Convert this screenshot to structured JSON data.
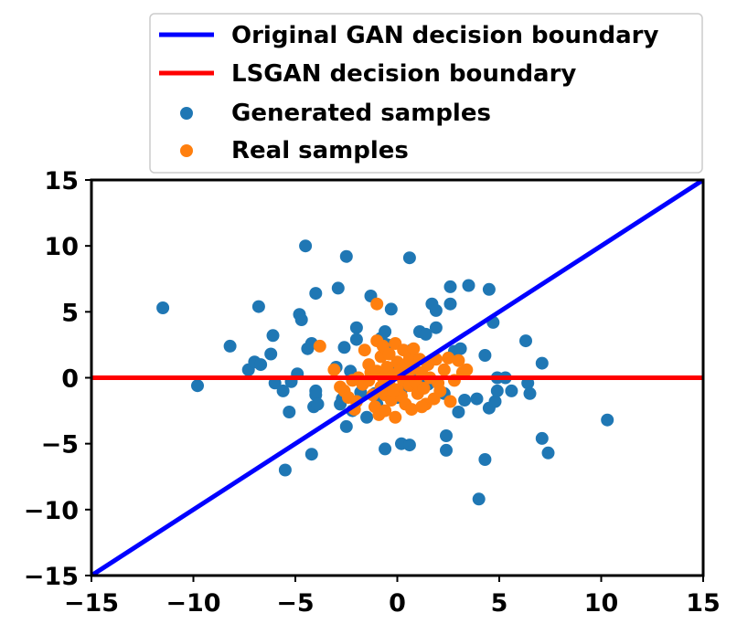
{
  "chart_data": {
    "type": "scatter",
    "title": "",
    "xlabel": "",
    "ylabel": "",
    "xlim": [
      -15,
      15
    ],
    "ylim": [
      -15,
      15
    ],
    "xticks": [
      -15,
      -10,
      -5,
      0,
      5,
      10,
      15
    ],
    "yticks": [
      -15,
      -10,
      -5,
      0,
      5,
      10,
      15
    ],
    "xtick_labels": [
      "−15",
      "−10",
      "−5",
      "0",
      "5",
      "10",
      "15"
    ],
    "ytick_labels": [
      "−15",
      "−10",
      "−5",
      "0",
      "5",
      "10",
      "15"
    ],
    "grid": false,
    "legend_position": "top-right, above plot",
    "lines": [
      {
        "name": "Original GAN decision boundary",
        "color": "#0000ff",
        "x": [
          -15,
          15
        ],
        "y": [
          -15,
          15
        ]
      },
      {
        "name": "LSGAN decision boundary",
        "color": "#ff0000",
        "x": [
          -15,
          15
        ],
        "y": [
          0,
          0
        ]
      }
    ],
    "series": [
      {
        "name": "Generated samples",
        "color": "#1f77b4",
        "points": [
          [
            -11.5,
            5.3
          ],
          [
            -9.8,
            -0.6
          ],
          [
            -8.2,
            2.4
          ],
          [
            -7.3,
            0.6
          ],
          [
            -7.0,
            1.2
          ],
          [
            -6.8,
            5.4
          ],
          [
            -6.7,
            1.0
          ],
          [
            -6.2,
            1.8
          ],
          [
            -6.1,
            3.2
          ],
          [
            -6.0,
            -0.4
          ],
          [
            -5.6,
            -1.0
          ],
          [
            -5.5,
            -7.0
          ],
          [
            -5.3,
            -2.6
          ],
          [
            -5.2,
            -0.3
          ],
          [
            -4.9,
            0.3
          ],
          [
            -4.8,
            4.8
          ],
          [
            -4.7,
            4.4
          ],
          [
            -4.5,
            10.0
          ],
          [
            -4.4,
            2.2
          ],
          [
            -4.2,
            2.6
          ],
          [
            -4.2,
            -5.8
          ],
          [
            -4.1,
            -2.2
          ],
          [
            -4.0,
            -1.0
          ],
          [
            -4.0,
            6.4
          ],
          [
            -4.0,
            -1.3
          ],
          [
            -3.9,
            -2.0
          ],
          [
            -3.0,
            0.8
          ],
          [
            -2.9,
            6.8
          ],
          [
            -2.8,
            -2.0
          ],
          [
            -2.7,
            -1.6
          ],
          [
            -2.6,
            2.3
          ],
          [
            -2.5,
            9.2
          ],
          [
            -2.5,
            -3.7
          ],
          [
            -2.3,
            0.5
          ],
          [
            -2.2,
            -2.5
          ],
          [
            -2.0,
            3.8
          ],
          [
            -2.0,
            2.9
          ],
          [
            -1.8,
            -1.1
          ],
          [
            -1.5,
            -3.0
          ],
          [
            -1.3,
            6.2
          ],
          [
            -1.1,
            -1.2
          ],
          [
            -1.0,
            -2.0
          ],
          [
            -0.8,
            3.0
          ],
          [
            -0.6,
            -5.4
          ],
          [
            -0.6,
            3.5
          ],
          [
            -0.5,
            2.5
          ],
          [
            -0.3,
            5.2
          ],
          [
            0.2,
            -5.0
          ],
          [
            0.2,
            -0.9
          ],
          [
            0.5,
            1.0
          ],
          [
            0.6,
            9.1
          ],
          [
            0.6,
            -5.1
          ],
          [
            0.7,
            2.1
          ],
          [
            1.1,
            3.5
          ],
          [
            1.4,
            3.3
          ],
          [
            1.5,
            -0.5
          ],
          [
            1.7,
            5.6
          ],
          [
            1.9,
            5.1
          ],
          [
            1.9,
            3.8
          ],
          [
            2.3,
            -1.2
          ],
          [
            2.4,
            -4.4
          ],
          [
            2.4,
            -5.5
          ],
          [
            2.6,
            6.9
          ],
          [
            2.6,
            5.6
          ],
          [
            2.8,
            2.0
          ],
          [
            3.0,
            -2.6
          ],
          [
            3.1,
            2.2
          ],
          [
            3.3,
            -1.7
          ],
          [
            3.5,
            7.0
          ],
          [
            3.9,
            -1.6
          ],
          [
            4.0,
            -9.2
          ],
          [
            4.3,
            1.7
          ],
          [
            4.3,
            -6.2
          ],
          [
            4.5,
            6.7
          ],
          [
            4.5,
            -2.3
          ],
          [
            4.7,
            4.2
          ],
          [
            4.8,
            -1.8
          ],
          [
            4.9,
            -1.0
          ],
          [
            4.9,
            0.0
          ],
          [
            5.3,
            0.0
          ],
          [
            5.6,
            -1.0
          ],
          [
            6.3,
            2.8
          ],
          [
            6.4,
            -0.4
          ],
          [
            6.5,
            -1.2
          ],
          [
            7.1,
            -4.6
          ],
          [
            7.1,
            1.1
          ],
          [
            7.4,
            -5.7
          ],
          [
            10.3,
            -3.2
          ],
          [
            -0.2,
            0.5
          ],
          [
            0.0,
            -1.5
          ],
          [
            1.0,
            0.0
          ]
        ]
      },
      {
        "name": "Real samples",
        "color": "#ff7f0e",
        "points": [
          [
            -3.8,
            2.4
          ],
          [
            -3.1,
            0.6
          ],
          [
            -2.8,
            -0.7
          ],
          [
            -2.6,
            -1.0
          ],
          [
            -2.4,
            -1.5
          ],
          [
            -2.1,
            -2.4
          ],
          [
            -2.0,
            -1.8
          ],
          [
            -1.9,
            0.0
          ],
          [
            -1.7,
            -0.5
          ],
          [
            -1.6,
            2.1
          ],
          [
            -1.4,
            1.0
          ],
          [
            -1.4,
            -0.2
          ],
          [
            -1.3,
            0.4
          ],
          [
            -1.2,
            -1.3
          ],
          [
            -1.1,
            -2.2
          ],
          [
            -1.0,
            5.6
          ],
          [
            -1.0,
            2.8
          ],
          [
            -1.0,
            0.5
          ],
          [
            -0.9,
            -2.8
          ],
          [
            -0.8,
            1.6
          ],
          [
            -0.8,
            -0.7
          ],
          [
            -0.7,
            2.4
          ],
          [
            -0.7,
            0.0
          ],
          [
            -0.6,
            -1.3
          ],
          [
            -0.6,
            -2.5
          ],
          [
            -0.5,
            0.8
          ],
          [
            -0.4,
            1.8
          ],
          [
            -0.4,
            -0.5
          ],
          [
            -0.3,
            -1.7
          ],
          [
            -0.2,
            0.2
          ],
          [
            -0.1,
            2.6
          ],
          [
            -0.1,
            -3.0
          ],
          [
            0.0,
            1.2
          ],
          [
            0.0,
            -0.9
          ],
          [
            0.1,
            0.5
          ],
          [
            0.2,
            -1.4
          ],
          [
            0.3,
            2.1
          ],
          [
            0.3,
            -0.2
          ],
          [
            0.4,
            1.0
          ],
          [
            0.4,
            -2.0
          ],
          [
            0.5,
            0.2
          ],
          [
            0.6,
            -0.6
          ],
          [
            0.6,
            1.5
          ],
          [
            0.7,
            -2.4
          ],
          [
            0.8,
            2.2
          ],
          [
            0.8,
            0.7
          ],
          [
            0.9,
            -0.3
          ],
          [
            1.0,
            -1.2
          ],
          [
            1.1,
            1.4
          ],
          [
            1.2,
            0.4
          ],
          [
            1.3,
            -0.8
          ],
          [
            1.4,
            -2.0
          ],
          [
            1.5,
            1.0
          ],
          [
            1.6,
            0.0
          ],
          [
            1.8,
            -1.6
          ],
          [
            1.9,
            1.4
          ],
          [
            2.0,
            -0.4
          ],
          [
            2.1,
            -1.0
          ],
          [
            2.3,
            0.6
          ],
          [
            2.5,
            1.5
          ],
          [
            2.6,
            -1.8
          ],
          [
            2.8,
            -0.2
          ],
          [
            3.0,
            1.3
          ],
          [
            3.2,
            0.4
          ],
          [
            3.4,
            0.6
          ],
          [
            -2.2,
            -0.2
          ],
          [
            -0.2,
            -1.0
          ],
          [
            1.2,
            -2.2
          ]
        ]
      }
    ]
  }
}
